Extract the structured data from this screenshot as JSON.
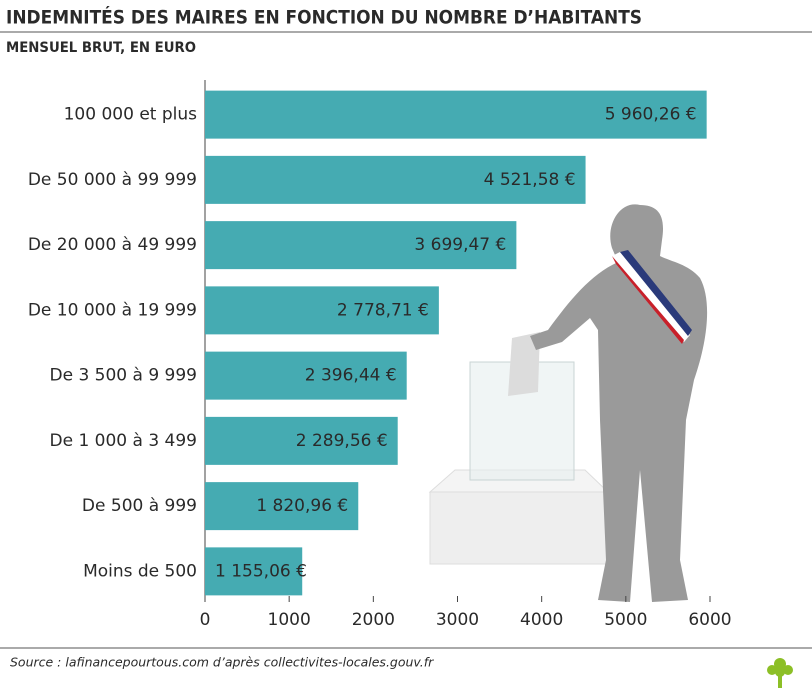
{
  "chart_data": {
    "type": "barh",
    "title": "INDEMNITÉS DES MAIRES EN FONCTION DU NOMBRE D’HABITANTS",
    "subtitle": "MENSUEL BRUT, EN EURO",
    "categories": [
      "100 000 et plus",
      "De 50 000 à 99 999",
      "De 20 000 à 49 999",
      "De 10 000 à 19 999",
      "De 3 500 à 9 999",
      "De 1 000 à 3 499",
      "De 500 à 999",
      "Moins de 500"
    ],
    "values": [
      5960.26,
      4521.58,
      3699.47,
      2778.71,
      2396.44,
      2289.56,
      1820.96,
      1155.06
    ],
    "value_labels": [
      "5 960,26 €",
      "4 521,58 €",
      "3 699,47 €",
      "2 778,71 €",
      "2 396,44 €",
      "2 289,56 €",
      "1 820,96 €",
      "1 155,06 €"
    ],
    "color": "#45abb2",
    "xlim": [
      0,
      6000
    ],
    "xticks": [
      0,
      1000,
      2000,
      3000,
      4000,
      5000,
      6000
    ],
    "source": "Source : lafinancepourtous.com d’après collectivites-locales.gouv.fr"
  }
}
